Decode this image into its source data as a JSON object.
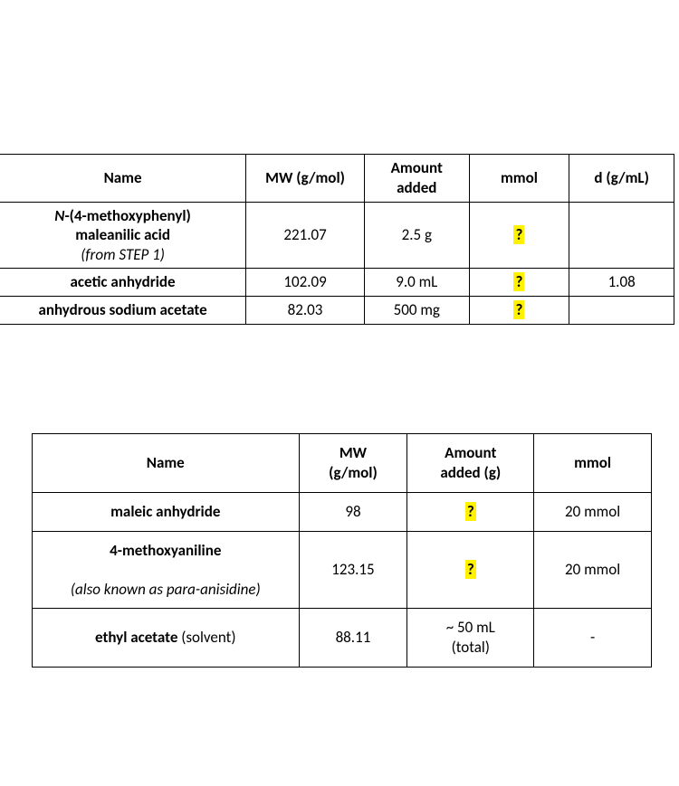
{
  "table1": {
    "headers": {
      "name": "Name",
      "mw": "MW (g/mol)",
      "amount_l1": "Amount",
      "amount_l2": "added",
      "mmol": "mmol",
      "d": "d (g/mL)"
    },
    "rows": [
      {
        "name_l1_prefix_ital": "N",
        "name_l1_rest": "-(4-methoxyphenyl)",
        "name_l2": "maleanilic acid",
        "name_l3_ital": "(from STEP 1)",
        "mw": "221.07",
        "amount": "2.5 g",
        "mmol": "?",
        "d": ""
      },
      {
        "name": "acetic anhydride",
        "mw": "102.09",
        "amount": "9.0 mL",
        "mmol": "?",
        "d": "1.08"
      },
      {
        "name": "anhydrous sodium acetate",
        "mw": "82.03",
        "amount": "500 mg",
        "mmol": "?",
        "d": ""
      }
    ]
  },
  "table2": {
    "headers": {
      "name": "Name",
      "mw_l1": "MW",
      "mw_l2": "(g/mol)",
      "amount_l1": "Amount",
      "amount_l2": "added (g)",
      "mmol": "mmol"
    },
    "rows": [
      {
        "name": "maleic anhydride",
        "mw": "98",
        "amount": "?",
        "amount_hl": true,
        "mmol": "20 mmol"
      },
      {
        "name_l1": "4-methoxyaniline",
        "name_l2_ital": "(also known as para-anisidine)",
        "mw": "123.15",
        "amount": "?",
        "amount_hl": true,
        "mmol": "20 mmol"
      },
      {
        "name_bold": "ethyl acetate",
        "name_rest": " (solvent)",
        "mw": "88.11",
        "amount_l1": "~ 50 mL",
        "amount_l2": "(total)",
        "mmol": "-"
      }
    ]
  },
  "colors": {
    "highlight": "#fff200",
    "border": "#000000",
    "background": "#ffffff",
    "text": "#000000"
  }
}
